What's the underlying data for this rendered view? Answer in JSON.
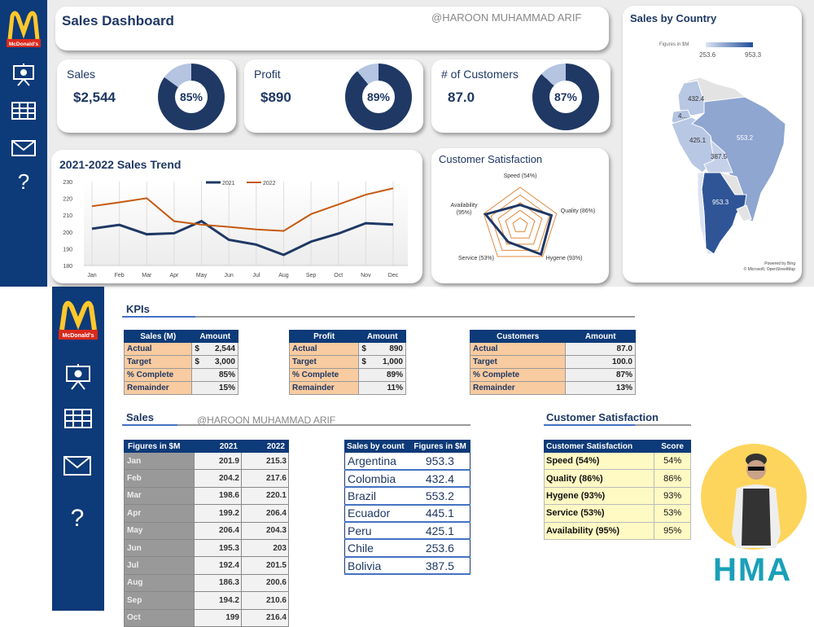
{
  "header": {
    "title": "Sales Dashboard",
    "watermark": "@HAROON MUHAMMAD ARIF"
  },
  "brand": {
    "logo_text": "McDonald's",
    "colors": {
      "navy": "#0d3a78",
      "orange": "#c55a11",
      "gold": "#ffc72c",
      "red": "#da291c"
    }
  },
  "sidebar": {
    "items": [
      {
        "icon": "presentation-icon"
      },
      {
        "icon": "table-icon"
      },
      {
        "icon": "mail-icon"
      },
      {
        "icon": "help-icon",
        "label": "?"
      }
    ]
  },
  "kpi_cards": [
    {
      "label": "Sales",
      "value": "$2,544",
      "percent": 85,
      "percent_label": "85%"
    },
    {
      "label": "Profit",
      "value": "$890",
      "percent": 89,
      "percent_label": "89%"
    },
    {
      "label": "# of Customers",
      "value": "87.0",
      "percent": 87,
      "percent_label": "87%"
    }
  ],
  "chart_data": [
    {
      "type": "line",
      "title": "2021-2022 Sales Trend",
      "categories": [
        "Jan",
        "Feb",
        "Mar",
        "Apr",
        "May",
        "Jun",
        "Jul",
        "Aug",
        "Sep",
        "Oct",
        "Nov",
        "Dec"
      ],
      "series": [
        {
          "name": "2021",
          "color": "#1f3864",
          "values": [
            201.9,
            204.2,
            198.6,
            199.2,
            206.4,
            195.3,
            192.4,
            186.3,
            194.2,
            199,
            205.2,
            204.4
          ]
        },
        {
          "name": "2022",
          "color": "#c55a11",
          "values": [
            215.3,
            217.6,
            220.1,
            206.4,
            204.3,
            203,
            201.5,
            200.6,
            210.6,
            216.4,
            222.2,
            226
          ]
        }
      ],
      "ylim": [
        180,
        230
      ],
      "yticks": [
        "180",
        "190",
        "200",
        "210",
        "220",
        "230"
      ],
      "legend": "top-center",
      "grid": "vertical"
    },
    {
      "type": "radar",
      "title": "Customer Satisfaction",
      "categories": [
        "Speed (54%)",
        "Quality (86%)",
        "Hygene (93%)",
        "Service (53%)",
        "Availability (95%)"
      ],
      "values": [
        54,
        86,
        93,
        53,
        95
      ],
      "range": [
        0,
        100
      ]
    },
    {
      "type": "map",
      "title": "Sales by Country",
      "legend_label": "Figures in $M",
      "legend_min": "253.6",
      "legend_max": "953.3",
      "labels": {
        "Argentina": "953.3",
        "Colombia": "432.4",
        "Brazil": "553.2",
        "Ecuador": "4...",
        "Peru": "425.1",
        "Bolivia": "387.5"
      },
      "credit1": "Powered by Bing",
      "credit2": "© Microsoft, OpenStreetMap"
    }
  ],
  "kpis": {
    "heading": "KPIs",
    "tables": [
      {
        "h1": "Sales (M)",
        "h2": "Amount",
        "rows": [
          [
            "Actual",
            "$",
            "2,544"
          ],
          [
            "Target",
            "$",
            "3,000"
          ],
          [
            "% Complete",
            "",
            "85%"
          ],
          [
            "Remainder",
            "",
            "15%"
          ]
        ]
      },
      {
        "h1": "Profit",
        "h2": "Amount",
        "rows": [
          [
            "Actual",
            "$",
            "890"
          ],
          [
            "Target",
            "$",
            "1,000"
          ],
          [
            "% Complete",
            "",
            "89%"
          ],
          [
            "Remainder",
            "",
            "11%"
          ]
        ]
      },
      {
        "h1": "Customers",
        "h2": "Amount",
        "rows": [
          [
            "Actual",
            "",
            "87.0"
          ],
          [
            "Target",
            "",
            "100.0"
          ],
          [
            "% Complete",
            "",
            "87%"
          ],
          [
            "Remainder",
            "",
            "13%"
          ]
        ]
      }
    ]
  },
  "sales": {
    "heading": "Sales",
    "watermark": "@HAROON MUHAMMAD ARIF",
    "headers": [
      "Figures in $M",
      "2021",
      "2022"
    ],
    "rows": [
      [
        "Jan",
        "201.9",
        "215.3"
      ],
      [
        "Feb",
        "204.2",
        "217.6"
      ],
      [
        "Mar",
        "198.6",
        "220.1"
      ],
      [
        "Apr",
        "199.2",
        "206.4"
      ],
      [
        "May",
        "206.4",
        "204.3"
      ],
      [
        "Jun",
        "195.3",
        "203"
      ],
      [
        "Jul",
        "192.4",
        "201.5"
      ],
      [
        "Aug",
        "186.3",
        "200.6"
      ],
      [
        "Sep",
        "194.2",
        "210.6"
      ],
      [
        "Oct",
        "199",
        "216.4"
      ]
    ]
  },
  "countries": {
    "headers": [
      "Sales by count",
      "Figures in $M"
    ],
    "rows": [
      [
        "Argentina",
        "953.3"
      ],
      [
        "Colombia",
        "432.4"
      ],
      [
        "Brazil",
        "553.2"
      ],
      [
        "Ecuador",
        "445.1"
      ],
      [
        "Peru",
        "425.1"
      ],
      [
        "Chile",
        "253.6"
      ],
      [
        "Bolivia",
        "387.5"
      ]
    ]
  },
  "satisfaction": {
    "heading": "Customer Satisfaction",
    "headers": [
      "Customer Satisfaction",
      "Score"
    ],
    "rows": [
      [
        "Speed (54%)",
        "54%"
      ],
      [
        "Quality (86%)",
        "86%"
      ],
      [
        "Hygene (93%)",
        "93%"
      ],
      [
        "Service (53%)",
        "53%"
      ],
      [
        "Availability (95%)",
        "95%"
      ]
    ]
  },
  "author": {
    "initials": "HMA"
  }
}
